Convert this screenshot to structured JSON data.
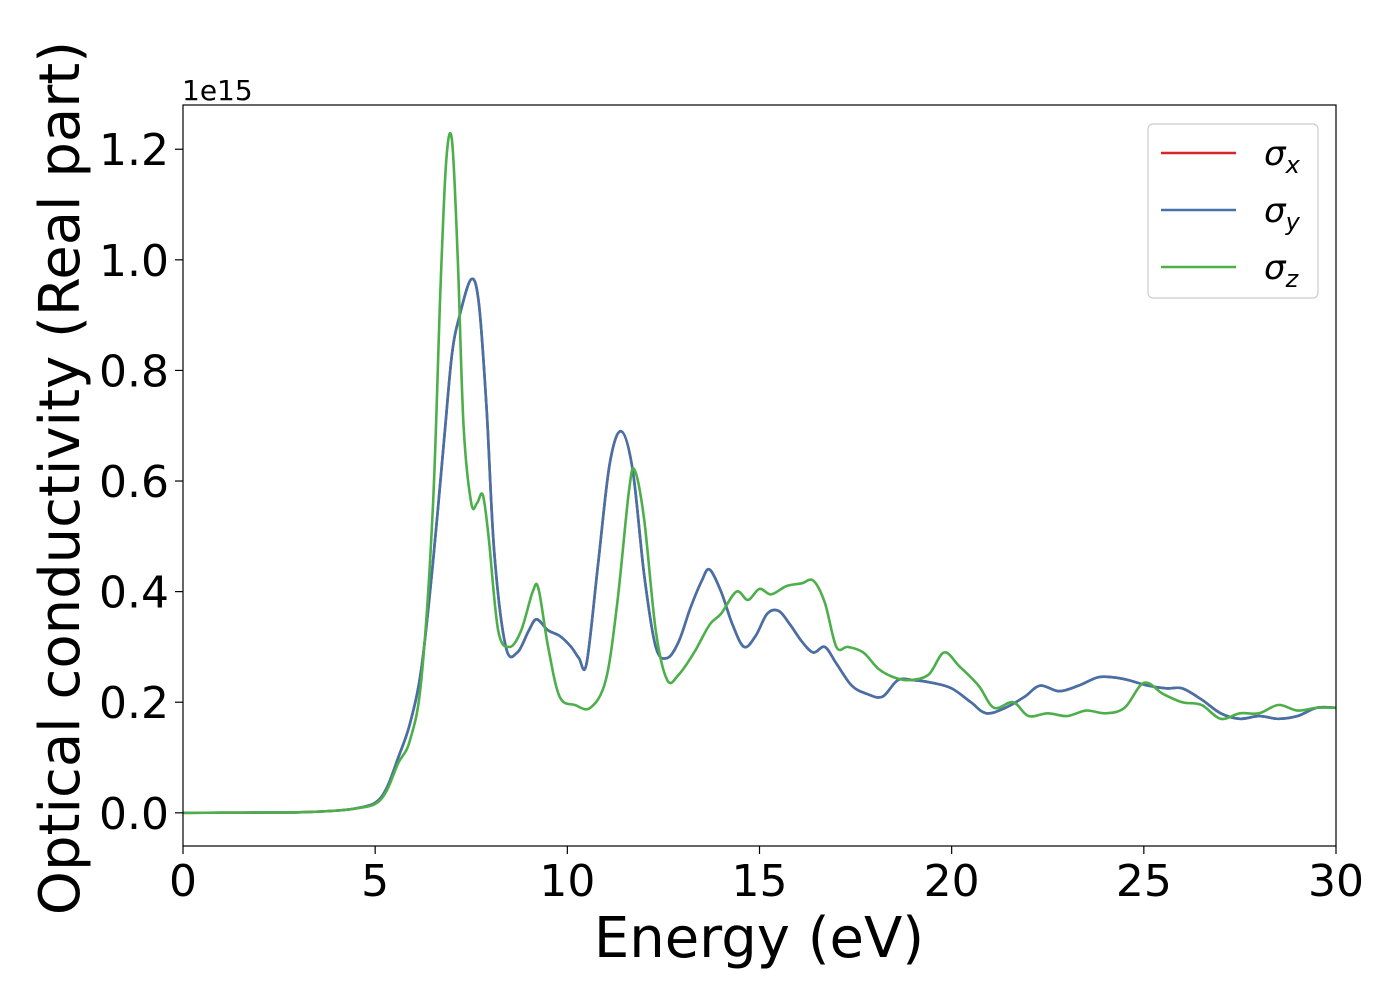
{
  "chart_data": {
    "type": "line",
    "title": "",
    "xlabel": "Energy (eV)",
    "ylabel": "Optical conductivity (Real part)",
    "y_offset_text": "1e15",
    "xlim": [
      0,
      30
    ],
    "ylim": [
      -0.06,
      1.28
    ],
    "x_ticks": [
      0,
      5,
      10,
      15,
      20,
      25,
      30
    ],
    "y_ticks": [
      0.0,
      0.2,
      0.4,
      0.6,
      0.8,
      1.0,
      1.2
    ],
    "x_tick_labels": [
      "0",
      "5",
      "10",
      "15",
      "20",
      "25",
      "30"
    ],
    "y_tick_labels": [
      "0.0",
      "0.2",
      "0.4",
      "0.6",
      "0.8",
      "1.0",
      "1.2"
    ],
    "grid": false,
    "legend_position": "top-right",
    "series": [
      {
        "name": "σx",
        "legend_symbol": "σ",
        "legend_subscript": "x",
        "color": "#d62728",
        "x": [
          0,
          1,
          2,
          3,
          4,
          4.5,
          5,
          5.3,
          5.6,
          5.9,
          6.2,
          6.5,
          6.8,
          7.0,
          7.2,
          7.5,
          7.7,
          7.9,
          8.1,
          8.4,
          8.7,
          9.0,
          9.2,
          9.5,
          9.8,
          10.1,
          10.3,
          10.5,
          10.8,
          11.1,
          11.4,
          11.7,
          12.0,
          12.3,
          12.6,
          12.9,
          13.2,
          13.5,
          13.7,
          14.0,
          14.3,
          14.6,
          14.9,
          15.2,
          15.5,
          15.8,
          16.1,
          16.4,
          16.7,
          17.0,
          17.4,
          17.8,
          18.2,
          18.6,
          19.0,
          19.5,
          20.0,
          20.5,
          20.9,
          21.4,
          21.9,
          22.3,
          22.8,
          23.3,
          23.8,
          24.2,
          24.6,
          25.1,
          25.6,
          26.0,
          26.5,
          27.0,
          27.5,
          28.0,
          28.5,
          29.0,
          29.5,
          30.0
        ],
        "y": [
          0,
          0.0002,
          0.0005,
          0.001,
          0.004,
          0.008,
          0.018,
          0.045,
          0.1,
          0.16,
          0.26,
          0.45,
          0.68,
          0.83,
          0.9,
          0.965,
          0.92,
          0.73,
          0.47,
          0.3,
          0.29,
          0.33,
          0.35,
          0.33,
          0.32,
          0.3,
          0.28,
          0.27,
          0.45,
          0.63,
          0.69,
          0.62,
          0.43,
          0.3,
          0.28,
          0.31,
          0.37,
          0.42,
          0.44,
          0.4,
          0.34,
          0.3,
          0.32,
          0.36,
          0.365,
          0.34,
          0.31,
          0.29,
          0.3,
          0.27,
          0.23,
          0.215,
          0.21,
          0.24,
          0.24,
          0.235,
          0.225,
          0.2,
          0.18,
          0.19,
          0.21,
          0.23,
          0.22,
          0.23,
          0.245,
          0.245,
          0.24,
          0.23,
          0.225,
          0.225,
          0.205,
          0.18,
          0.17,
          0.175,
          0.17,
          0.175,
          0.19,
          0.19
        ]
      },
      {
        "name": "σy",
        "legend_symbol": "σ",
        "legend_subscript": "y",
        "color": "#4472a8",
        "x": [
          0,
          1,
          2,
          3,
          4,
          4.5,
          5,
          5.3,
          5.6,
          5.9,
          6.2,
          6.5,
          6.8,
          7.0,
          7.2,
          7.5,
          7.7,
          7.9,
          8.1,
          8.4,
          8.7,
          9.0,
          9.2,
          9.5,
          9.8,
          10.1,
          10.3,
          10.5,
          10.8,
          11.1,
          11.4,
          11.7,
          12.0,
          12.3,
          12.6,
          12.9,
          13.2,
          13.5,
          13.7,
          14.0,
          14.3,
          14.6,
          14.9,
          15.2,
          15.5,
          15.8,
          16.1,
          16.4,
          16.7,
          17.0,
          17.4,
          17.8,
          18.2,
          18.6,
          19.0,
          19.5,
          20.0,
          20.5,
          20.9,
          21.4,
          21.9,
          22.3,
          22.8,
          23.3,
          23.8,
          24.2,
          24.6,
          25.1,
          25.6,
          26.0,
          26.5,
          27.0,
          27.5,
          28.0,
          28.5,
          29.0,
          29.5,
          30.0
        ],
        "y": [
          0,
          0.0002,
          0.0005,
          0.001,
          0.004,
          0.008,
          0.018,
          0.045,
          0.1,
          0.16,
          0.26,
          0.45,
          0.68,
          0.83,
          0.9,
          0.965,
          0.92,
          0.73,
          0.47,
          0.3,
          0.29,
          0.33,
          0.35,
          0.33,
          0.32,
          0.3,
          0.28,
          0.27,
          0.45,
          0.63,
          0.69,
          0.62,
          0.43,
          0.3,
          0.28,
          0.31,
          0.37,
          0.42,
          0.44,
          0.4,
          0.34,
          0.3,
          0.32,
          0.36,
          0.365,
          0.34,
          0.31,
          0.29,
          0.3,
          0.27,
          0.23,
          0.215,
          0.21,
          0.24,
          0.24,
          0.235,
          0.225,
          0.2,
          0.18,
          0.19,
          0.21,
          0.23,
          0.22,
          0.23,
          0.245,
          0.245,
          0.24,
          0.23,
          0.225,
          0.225,
          0.205,
          0.18,
          0.17,
          0.175,
          0.17,
          0.175,
          0.19,
          0.19
        ]
      },
      {
        "name": "σz",
        "legend_symbol": "σ",
        "legend_subscript": "z",
        "color": "#4daf4a",
        "x": [
          0,
          1,
          2,
          3,
          4,
          4.5,
          5,
          5.3,
          5.6,
          5.9,
          6.2,
          6.5,
          6.7,
          6.85,
          7.0,
          7.15,
          7.3,
          7.5,
          7.65,
          7.8,
          7.95,
          8.2,
          8.5,
          8.8,
          9.1,
          9.25,
          9.5,
          9.8,
          10.2,
          10.6,
          11.0,
          11.3,
          11.6,
          11.75,
          12.0,
          12.3,
          12.6,
          12.9,
          13.3,
          13.7,
          14.0,
          14.4,
          14.7,
          15.0,
          15.3,
          15.7,
          16.1,
          16.4,
          16.7,
          17.0,
          17.3,
          17.7,
          18.1,
          18.5,
          18.9,
          19.4,
          19.8,
          20.2,
          20.7,
          21.1,
          21.6,
          22.0,
          22.5,
          23.0,
          23.5,
          24.0,
          24.5,
          25.0,
          25.5,
          26.0,
          26.5,
          27.0,
          27.5,
          28.0,
          28.5,
          29.0,
          29.5,
          30.0
        ],
        "y": [
          0,
          0.0002,
          0.0005,
          0.001,
          0.004,
          0.008,
          0.016,
          0.04,
          0.09,
          0.13,
          0.24,
          0.55,
          0.95,
          1.18,
          1.215,
          1.0,
          0.7,
          0.56,
          0.56,
          0.575,
          0.5,
          0.33,
          0.3,
          0.33,
          0.4,
          0.405,
          0.3,
          0.21,
          0.195,
          0.19,
          0.24,
          0.38,
          0.58,
          0.62,
          0.53,
          0.33,
          0.24,
          0.25,
          0.29,
          0.34,
          0.36,
          0.4,
          0.385,
          0.405,
          0.395,
          0.41,
          0.415,
          0.42,
          0.38,
          0.3,
          0.3,
          0.29,
          0.26,
          0.245,
          0.24,
          0.25,
          0.29,
          0.265,
          0.23,
          0.19,
          0.2,
          0.175,
          0.18,
          0.175,
          0.185,
          0.18,
          0.19,
          0.235,
          0.215,
          0.2,
          0.195,
          0.17,
          0.18,
          0.18,
          0.195,
          0.185,
          0.19,
          0.19
        ]
      }
    ]
  }
}
